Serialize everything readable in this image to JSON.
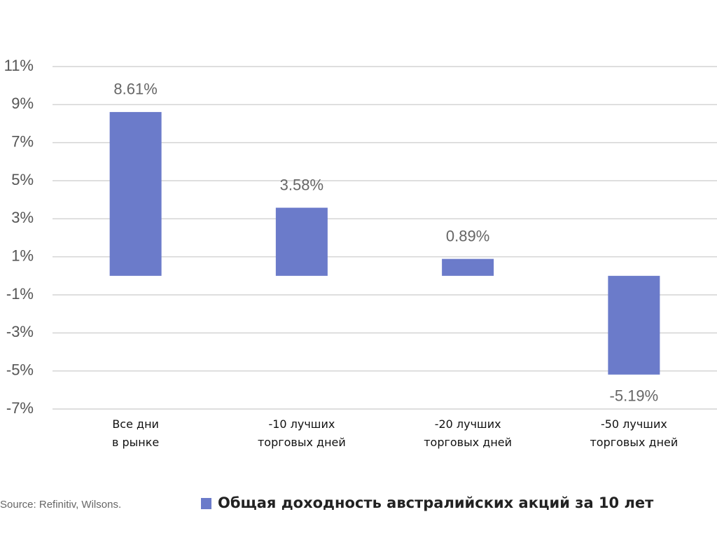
{
  "chart_data": {
    "type": "bar",
    "categories": [
      "Все дни\nв рынке",
      "-10 лучших\nторговых дней",
      "-20 лучших\nторговых дней",
      "-50 лучших\nторговых дней"
    ],
    "series": [
      {
        "name": "Общая доходность австралийских акций за 10 лет",
        "color": "#6b7bca",
        "values": [
          8.61,
          3.58,
          0.89,
          -5.19
        ],
        "value_labels": [
          "8.61%",
          "3.58%",
          "0.89%",
          "-5.19%"
        ]
      }
    ],
    "ylim": [
      -7,
      11
    ],
    "yticks": [
      {
        "value": 11,
        "label": "11%"
      },
      {
        "value": 9,
        "label": "9%"
      },
      {
        "value": 7,
        "label": "7%"
      },
      {
        "value": 5,
        "label": "5%"
      },
      {
        "value": 3,
        "label": "3%"
      },
      {
        "value": 1,
        "label": "1%"
      },
      {
        "value": -1,
        "label": "-1%"
      },
      {
        "value": -3,
        "label": "-3%"
      },
      {
        "value": -5,
        "label": "-5%"
      },
      {
        "value": -7,
        "label": "-7%"
      }
    ],
    "grid": true,
    "source": "Source: Refinitiv, Wilsons."
  }
}
